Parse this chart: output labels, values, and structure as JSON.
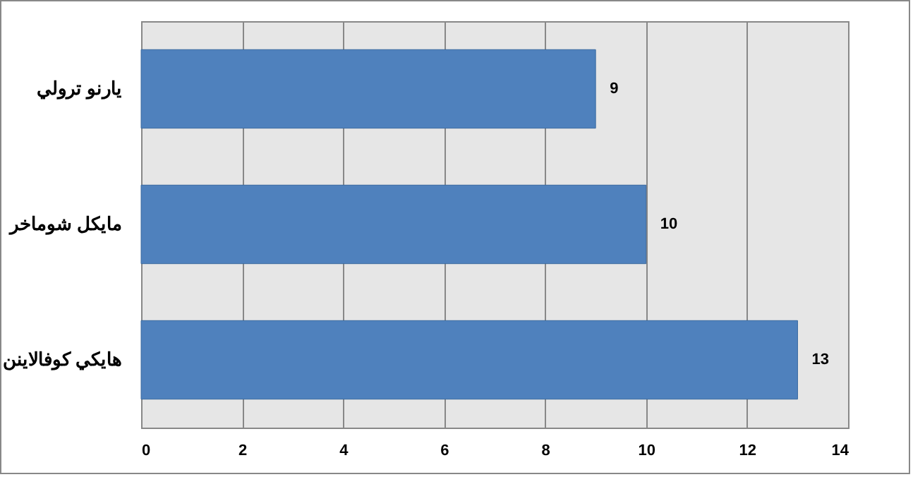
{
  "chart_data": {
    "type": "bar",
    "orientation": "horizontal",
    "categories": [
      "يارنو ترولي",
      "مايكل شوماخر",
      "هايكي كوفالاينن"
    ],
    "values": [
      9,
      10,
      13
    ],
    "color": "#4f81bd",
    "xlim": [
      0,
      14
    ],
    "xticks": [
      0,
      2,
      4,
      6,
      8,
      10,
      12,
      14
    ],
    "grid": "x",
    "data_labels": true
  }
}
